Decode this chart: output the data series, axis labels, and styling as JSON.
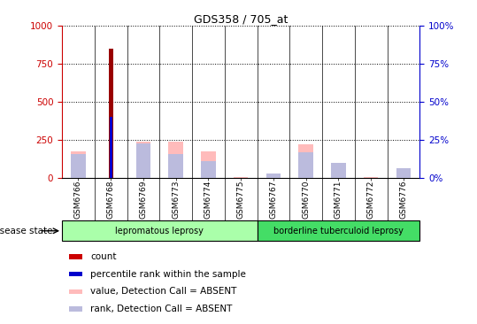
{
  "title": "GDS358 / 705_at",
  "samples": [
    "GSM6766",
    "GSM6768",
    "GSM6769",
    "GSM6773",
    "GSM6774",
    "GSM6775",
    "GSM6767",
    "GSM6770",
    "GSM6771",
    "GSM6772",
    "GSM6776"
  ],
  "count_values": [
    0,
    850,
    0,
    0,
    0,
    0,
    0,
    0,
    0,
    0,
    0
  ],
  "percentile_values_scaled": [
    0,
    400,
    0,
    0,
    0,
    0,
    0,
    0,
    0,
    0,
    0
  ],
  "absent_value_values": [
    175,
    0,
    240,
    240,
    175,
    5,
    20,
    220,
    0,
    5,
    0
  ],
  "absent_rank_values": [
    160,
    0,
    230,
    160,
    115,
    0,
    30,
    170,
    100,
    0,
    65
  ],
  "ylim_left": [
    0,
    1000
  ],
  "ylim_right": [
    0,
    100
  ],
  "yticks_left": [
    0,
    250,
    500,
    750,
    1000
  ],
  "yticks_right": [
    0,
    25,
    50,
    75,
    100
  ],
  "disease_groups": [
    {
      "label": "lepromatous leprosy",
      "start": 0,
      "end": 6,
      "color": "#aaffaa"
    },
    {
      "label": "borderline tuberculoid leprosy",
      "start": 6,
      "end": 11,
      "color": "#44dd66"
    }
  ],
  "legend_items": [
    {
      "label": "count",
      "color": "#cc0000"
    },
    {
      "label": "percentile rank within the sample",
      "color": "#0000cc"
    },
    {
      "label": "value, Detection Call = ABSENT",
      "color": "#ffbbbb"
    },
    {
      "label": "rank, Detection Call = ABSENT",
      "color": "#bbbbdd"
    }
  ],
  "count_color": "#990000",
  "percentile_color": "#0000cc",
  "absent_value_color": "#ffbbbb",
  "absent_rank_color": "#bbbbdd",
  "left_axis_color": "#cc0000",
  "right_axis_color": "#0000cc",
  "grid_color": "#000000",
  "tick_bg_color": "#cccccc"
}
